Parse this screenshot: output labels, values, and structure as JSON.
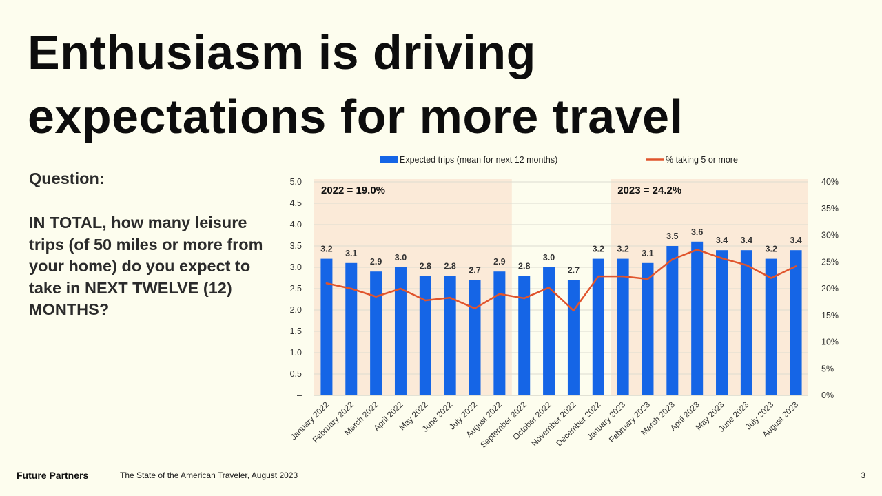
{
  "slide": {
    "title_line1": "Enthusiasm is driving",
    "title_line2": "expectations for more travel",
    "question_label": "Question:",
    "question_text": "IN TOTAL, how many leisure trips (of 50 miles or more from your home) do you expect to take in NEXT TWELVE (12) MONTHS?",
    "footer_brand": "Future Partners",
    "footer_source": "The State of the American Traveler, August 2023",
    "page_number": "3"
  },
  "chart_data": {
    "type": "bar",
    "categories": [
      "January 2022",
      "February 2022",
      "March 2022",
      "April 2022",
      "May 2022",
      "June 2022",
      "July 2022",
      "August 2022",
      "September 2022",
      "October 2022",
      "November 2022",
      "December 2022",
      "January 2023",
      "February 2023",
      "March 2023",
      "April 2023",
      "May 2023",
      "June 2023",
      "July 2023",
      "August 2023"
    ],
    "series": [
      {
        "name": "Expected trips (mean for next 12 months)",
        "kind": "bar",
        "axis": "left",
        "color": "#1565e6",
        "values": [
          3.2,
          3.1,
          2.9,
          3.0,
          2.8,
          2.8,
          2.7,
          2.9,
          2.8,
          3.0,
          2.7,
          3.2,
          3.2,
          3.1,
          3.5,
          3.6,
          3.4,
          3.4,
          3.2,
          3.4
        ],
        "labels": [
          "3.2",
          "3.1",
          "2.9",
          "3.0",
          "2.8",
          "2.8",
          "2.7",
          "2.9",
          "2.8",
          "3.0",
          "2.7",
          "3.2",
          "3.2",
          "3.1",
          "3.5",
          "3.6",
          "3.4",
          "3.4",
          "3.2",
          "3.4"
        ]
      },
      {
        "name": "% taking 5 or more",
        "kind": "line",
        "axis": "right",
        "color": "#e0542c",
        "values": [
          21.0,
          20.0,
          18.5,
          20.0,
          17.8,
          18.3,
          16.3,
          19.0,
          18.2,
          20.2,
          15.9,
          22.3,
          22.3,
          21.8,
          25.5,
          27.3,
          25.7,
          24.4,
          22.0,
          24.2
        ]
      }
    ],
    "y_left": {
      "min": 0,
      "max": 5,
      "step": 0.5,
      "ticks": [
        "–",
        "0.5",
        "1.0",
        "1.5",
        "2.0",
        "2.5",
        "3.0",
        "3.5",
        "4.0",
        "4.5",
        "5.0"
      ]
    },
    "y_right": {
      "min": 0,
      "max": 40,
      "step": 5,
      "ticks": [
        "0%",
        "5%",
        "10%",
        "15%",
        "20%",
        "25%",
        "30%",
        "35%",
        "40%"
      ]
    },
    "grid": true,
    "legend_position": "top",
    "highlights": [
      {
        "label": "2022",
        "eq": "=",
        "value": "19.0%",
        "from_index": 0,
        "to_index": 7,
        "color": "#fbead8"
      },
      {
        "label": "2023",
        "eq": "=",
        "value": "24.2%",
        "from_index": 12,
        "to_index": 19,
        "color": "#fbead8"
      }
    ]
  }
}
